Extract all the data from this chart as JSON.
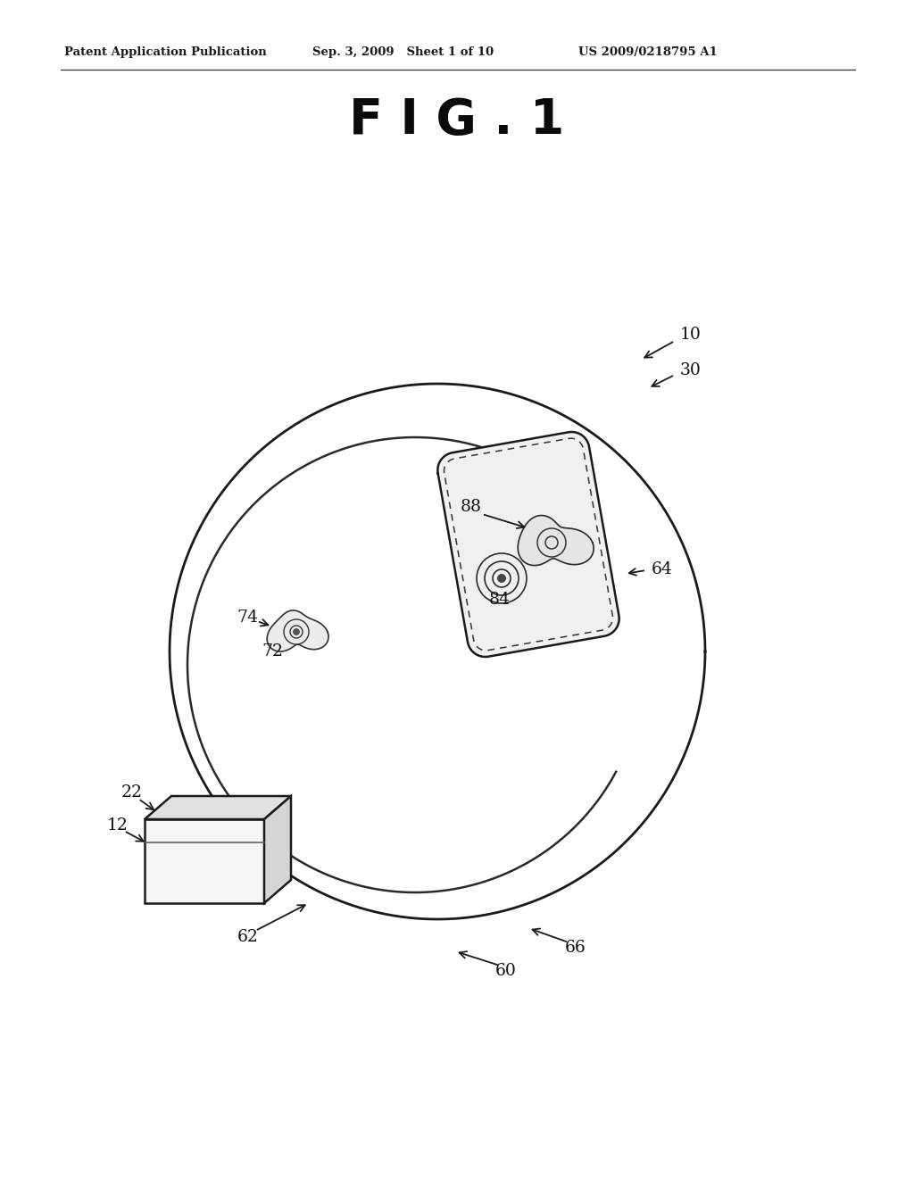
{
  "bg_color": "#ffffff",
  "header_left": "Patent Application Publication",
  "header_mid": "Sep. 3, 2009   Sheet 1 of 10",
  "header_right": "US 2009/0218795 A1",
  "fig_title": "F I G . 1",
  "line_color": "#1a1a1a",
  "label_color": "#111111"
}
